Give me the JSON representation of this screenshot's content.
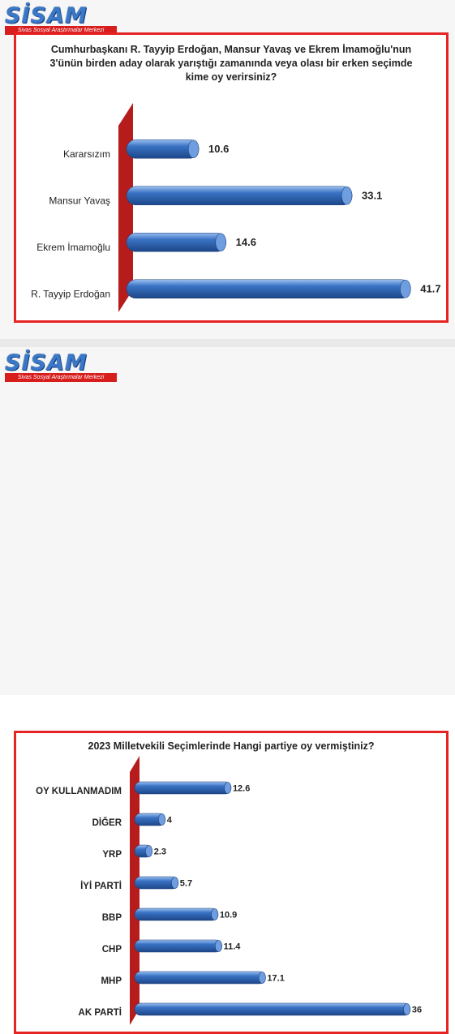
{
  "logo": {
    "text": "SİSAM",
    "subtitle": "Sivas Sosyal Araştırmalar Merkezi"
  },
  "chart_data": [
    {
      "type": "bar",
      "orientation": "horizontal",
      "title": "Cumhurbaşkanı R. Tayyip Erdoğan, Mansur Yavaş ve Ekrem İmamoğlu'nun 3'ünün birden  aday olarak yarıştığı  zamanında veya olası  bir erken seçimde kime oy verirsiniz?",
      "categories": [
        "Kararsızım",
        "Mansur Yavaş",
        "Ekrem İmamoğlu",
        "R. Tayyip Erdoğan"
      ],
      "values": [
        10.6,
        33.1,
        14.6,
        41.7
      ],
      "value_labels": [
        "10.6",
        "33.1",
        "14.6",
        "41.7"
      ],
      "xlim": [
        0,
        45
      ],
      "grid": false,
      "bar_color": "#3a73c4",
      "wall_color": "#b71c1c"
    },
    {
      "type": "bar",
      "orientation": "horizontal",
      "title": "2023 Milletvekili Seçimlerinde Hangi partiye oy vermiştiniz?",
      "categories": [
        "OY KULLANMADIM",
        "DİĞER",
        "YRP",
        "İYİ PARTİ",
        "BBP",
        "CHP",
        "MHP",
        "AK PARTİ"
      ],
      "values": [
        12.6,
        4,
        2.3,
        5.7,
        10.9,
        11.4,
        17.1,
        36
      ],
      "value_labels": [
        "12.6",
        "4",
        "2.3",
        "5.7",
        "10.9",
        "11.4",
        "17.1",
        "36"
      ],
      "xlim": [
        0,
        37.5
      ],
      "grid": false,
      "bar_color": "#3a73c4",
      "wall_color": "#b71c1c"
    }
  ]
}
